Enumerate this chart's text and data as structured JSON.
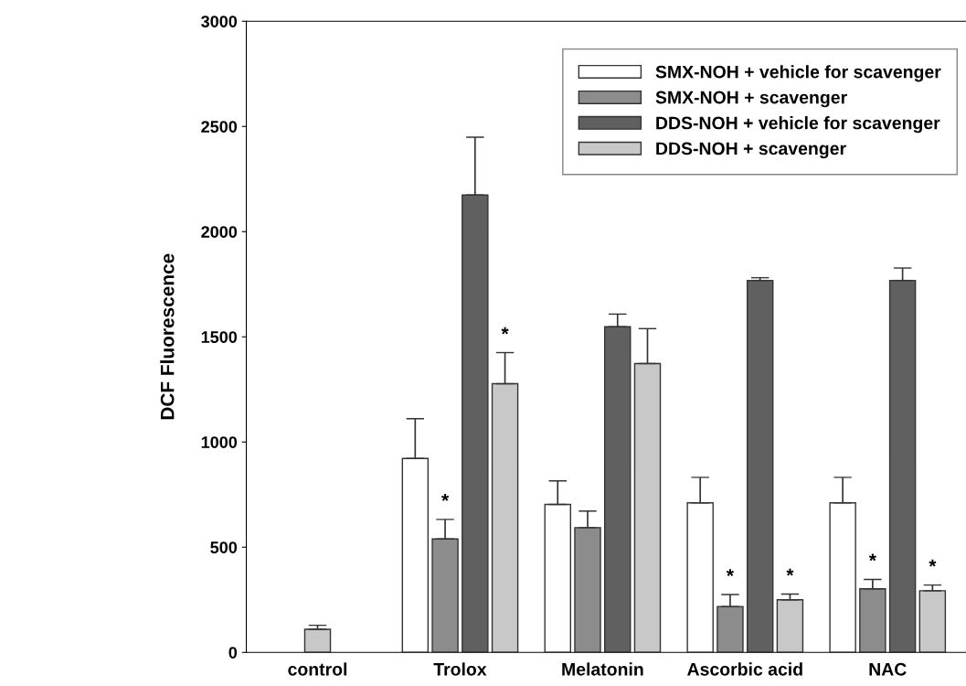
{
  "chart_data": {
    "type": "bar",
    "ylabel": "DCF Fluorescence",
    "categories": [
      "control",
      "Trolox",
      "Melatonin",
      "Ascorbic acid",
      "NAC"
    ],
    "ylim": [
      0,
      3000
    ],
    "yticks": [
      0,
      500,
      1000,
      1500,
      2000,
      2500,
      3000
    ],
    "grid": false,
    "legend": "top right",
    "series": [
      {
        "name": "SMX-NOH + vehicle for scavenger",
        "color": "#ffffff",
        "values": [
          null,
          922,
          703,
          711,
          711
        ],
        "errors": [
          null,
          [
            922,
            1111
          ],
          [
            703,
            815
          ],
          [
            711,
            832
          ],
          [
            711,
            832
          ]
        ]
      },
      {
        "name": "SMX-NOH + scavenger",
        "color": "#8c8c8c",
        "values": [
          null,
          539,
          593,
          218,
          302
        ],
        "errors": [
          null,
          [
            539,
            632
          ],
          [
            593,
            672
          ],
          [
            218,
            275
          ],
          [
            302,
            347
          ]
        ],
        "value_labels": [
          null,
          "*",
          null,
          "*",
          "*"
        ]
      },
      {
        "name": "DDS-NOH + vehicle for scavenger",
        "color": "#606060",
        "values": [
          null,
          2174,
          1548,
          1768,
          1768
        ],
        "errors": [
          null,
          [
            2174,
            2449
          ],
          [
            1548,
            1608
          ],
          [
            1768,
            1781
          ],
          [
            1768,
            1827
          ]
        ]
      },
      {
        "name": "DDS-NOH + scavenger",
        "color": "#c8c8c8",
        "values": [
          null,
          1277,
          1373,
          250,
          293
        ],
        "errors": [
          null,
          [
            1277,
            1425
          ],
          [
            1373,
            1539
          ],
          [
            250,
            277
          ],
          [
            293,
            320
          ]
        ],
        "value_labels": [
          null,
          "*",
          null,
          "*",
          "*"
        ]
      },
      {
        "color": "#c8c8c8",
        "values": [
          110,
          null,
          null,
          null,
          null
        ],
        "errors": [
          [
            110,
            129
          ],
          null,
          null,
          null,
          null
        ]
      }
    ]
  }
}
